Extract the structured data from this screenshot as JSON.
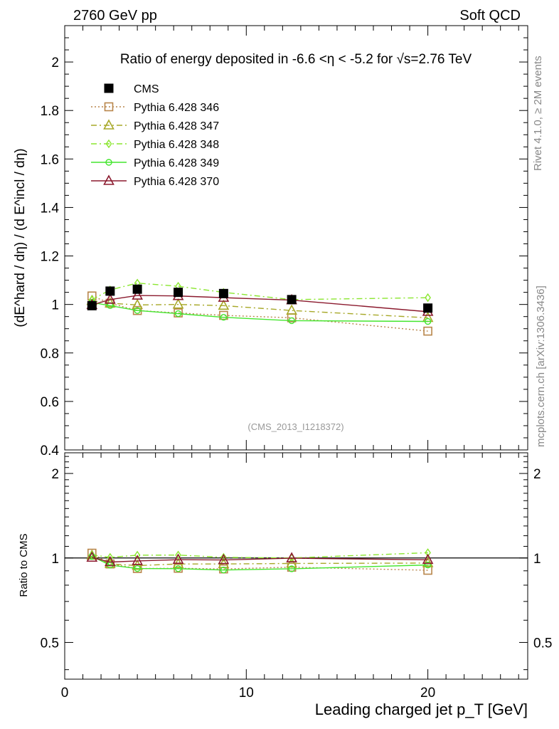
{
  "header": {
    "left": "2760 GeV pp",
    "right": "Soft QCD"
  },
  "side_labels": {
    "rivet": "Rivet 4.1.0, ≥ 2M events",
    "mcplots": "mcplots.cern.ch [arXiv:1306.3436]"
  },
  "chart_data": [
    {
      "type": "line",
      "panel": "main",
      "title": "Ratio of energy deposited in -6.6 <η < -5.2 for √s=2.76 TeV",
      "analysis_tag": "(CMS_2013_I1218372)",
      "ylabel": "(dE^hard / dη) / (d E^incl / dη)",
      "xlabel": "Leading charged jet p_T [GeV]",
      "xlim": [
        0,
        25.5
      ],
      "ylim": [
        0.4,
        2.15
      ],
      "yticks": [
        "0.4",
        "0.6",
        "0.8",
        "1",
        "1.2",
        "1.4",
        "1.6",
        "1.8",
        "2"
      ],
      "legend_position": "top-left",
      "series": [
        {
          "name": "CMS",
          "color": "#000000",
          "marker": "filled-square",
          "style": "none",
          "x": [
            1.5,
            2.5,
            4.0,
            6.25,
            8.75,
            12.5,
            20.0
          ],
          "y": [
            0.995,
            1.055,
            1.063,
            1.05,
            1.045,
            1.02,
            0.985
          ]
        },
        {
          "name": "Pythia 6.428 346",
          "color": "#B8864B",
          "marker": "open-square",
          "style": "dotted",
          "x": [
            1.5,
            2.5,
            4.0,
            6.25,
            8.75,
            12.5,
            20.0
          ],
          "y": [
            1.035,
            1.005,
            0.975,
            0.965,
            0.955,
            0.945,
            0.89
          ]
        },
        {
          "name": "Pythia 6.428 347",
          "color": "#A7A828",
          "marker": "open-triangle",
          "style": "dashdot",
          "x": [
            1.5,
            2.5,
            4.0,
            6.25,
            8.75,
            12.5,
            20.0
          ],
          "y": [
            1.015,
            1.005,
            0.998,
            1.0,
            0.995,
            0.975,
            0.945
          ]
        },
        {
          "name": "Pythia 6.428 348",
          "color": "#8AE62E",
          "marker": "open-diamond",
          "style": "dashdot",
          "x": [
            1.5,
            2.5,
            4.0,
            6.25,
            8.75,
            12.5,
            20.0
          ],
          "y": [
            1.02,
            1.06,
            1.088,
            1.075,
            1.05,
            1.02,
            1.028
          ]
        },
        {
          "name": "Pythia 6.428 349",
          "color": "#44E62E",
          "marker": "open-circle-cross",
          "style": "solid",
          "x": [
            1.5,
            2.5,
            4.0,
            6.25,
            8.75,
            12.5,
            20.0
          ],
          "y": [
            1.008,
            0.995,
            0.975,
            0.962,
            0.947,
            0.933,
            0.93
          ]
        },
        {
          "name": "Pythia 6.428 370",
          "color": "#8B1A2E",
          "marker": "open-triangle",
          "style": "solid",
          "x": [
            1.5,
            2.5,
            4.0,
            6.25,
            8.75,
            12.5,
            20.0
          ],
          "y": [
            0.998,
            1.02,
            1.037,
            1.035,
            1.028,
            1.018,
            0.97
          ]
        }
      ]
    },
    {
      "type": "line",
      "panel": "ratio",
      "ylabel": "Ratio to CMS",
      "xlabel": "Leading charged jet p_T [GeV]",
      "xlim": [
        0,
        25.5
      ],
      "ylim": [
        0.37,
        2.37
      ],
      "scale": "log",
      "xticks": [
        "0",
        "10",
        "20"
      ],
      "yticks": [
        "0.5",
        "1",
        "2"
      ],
      "reference_line": 1,
      "series": [
        {
          "name": "Pythia 6.428 346",
          "color": "#B8864B",
          "marker": "open-square",
          "style": "dotted",
          "x": [
            1.5,
            2.5,
            4.0,
            6.25,
            8.75,
            12.5,
            20.0
          ],
          "y": [
            1.04,
            0.952,
            0.917,
            0.919,
            0.914,
            0.927,
            0.904
          ]
        },
        {
          "name": "Pythia 6.428 347",
          "color": "#A7A828",
          "marker": "open-triangle",
          "style": "dashdot",
          "x": [
            1.5,
            2.5,
            4.0,
            6.25,
            8.75,
            12.5,
            20.0
          ],
          "y": [
            1.02,
            0.953,
            0.939,
            0.952,
            0.952,
            0.956,
            0.959
          ]
        },
        {
          "name": "Pythia 6.428 348",
          "color": "#8AE62E",
          "marker": "open-diamond",
          "style": "dashdot",
          "x": [
            1.5,
            2.5,
            4.0,
            6.25,
            8.75,
            12.5,
            20.0
          ],
          "y": [
            1.025,
            1.005,
            1.023,
            1.024,
            1.005,
            1.0,
            1.044
          ]
        },
        {
          "name": "Pythia 6.428 349",
          "color": "#44E62E",
          "marker": "open-circle-cross",
          "style": "solid",
          "x": [
            1.5,
            2.5,
            4.0,
            6.25,
            8.75,
            12.5,
            20.0
          ],
          "y": [
            1.013,
            0.943,
            0.917,
            0.916,
            0.906,
            0.915,
            0.944
          ]
        },
        {
          "name": "Pythia 6.428 370",
          "color": "#8B1A2E",
          "marker": "open-triangle",
          "style": "solid",
          "x": [
            1.5,
            2.5,
            4.0,
            6.25,
            8.75,
            12.5,
            20.0
          ],
          "y": [
            1.003,
            0.967,
            0.976,
            0.986,
            0.984,
            0.998,
            0.985
          ]
        }
      ]
    }
  ]
}
